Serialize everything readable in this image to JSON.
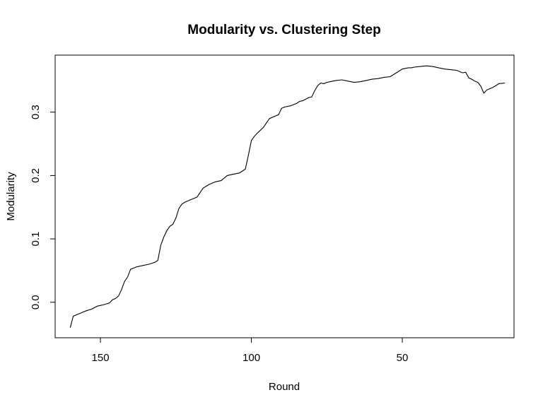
{
  "chart_data": {
    "type": "line",
    "title": "Modularity vs. Clustering Step",
    "xlabel": "Round",
    "ylabel": "Modularity",
    "xlim": [
      165,
      13
    ],
    "ylim": [
      -0.056,
      0.39
    ],
    "x_reversed": true,
    "grid": false,
    "legend": "none",
    "x_ticks": [
      {
        "value": 150,
        "label": "150"
      },
      {
        "value": 100,
        "label": "100"
      },
      {
        "value": 50,
        "label": "50"
      }
    ],
    "y_ticks": [
      {
        "value": 0.0,
        "label": "0.0"
      },
      {
        "value": 0.1,
        "label": "0.1"
      },
      {
        "value": 0.2,
        "label": "0.2"
      },
      {
        "value": 0.3,
        "label": "0.3"
      }
    ],
    "series": [
      {
        "x": [
          160,
          159,
          157,
          155,
          153,
          151,
          149,
          147,
          146,
          145,
          144,
          143,
          142,
          141,
          140,
          138,
          136,
          134,
          132,
          131,
          130,
          129,
          128,
          127,
          126,
          125,
          124,
          123,
          122,
          121,
          120,
          118,
          116,
          114,
          113,
          112,
          110,
          108,
          106,
          104,
          102,
          101,
          100,
          99,
          98,
          96,
          94,
          92,
          91,
          90,
          89,
          87,
          85,
          84,
          83,
          81,
          80,
          79,
          78,
          77,
          76,
          75,
          74,
          72,
          70,
          68,
          66,
          64,
          62,
          60,
          58,
          56,
          54,
          52,
          50,
          48,
          47,
          46,
          44,
          42,
          40,
          38,
          36,
          34,
          32,
          31,
          30,
          29,
          28,
          27,
          26,
          25,
          24,
          23,
          22,
          21,
          20,
          18,
          16
        ],
        "y": [
          -0.04,
          -0.022,
          -0.018,
          -0.014,
          -0.011,
          -0.006,
          -0.004,
          -0.001,
          0.004,
          0.006,
          0.01,
          0.02,
          0.033,
          0.04,
          0.052,
          0.056,
          0.058,
          0.06,
          0.063,
          0.066,
          0.09,
          0.103,
          0.113,
          0.12,
          0.123,
          0.133,
          0.148,
          0.155,
          0.158,
          0.16,
          0.162,
          0.166,
          0.18,
          0.186,
          0.188,
          0.19,
          0.192,
          0.2,
          0.202,
          0.204,
          0.21,
          0.232,
          0.255,
          0.262,
          0.267,
          0.276,
          0.29,
          0.294,
          0.296,
          0.306,
          0.308,
          0.31,
          0.314,
          0.317,
          0.318,
          0.323,
          0.324,
          0.334,
          0.342,
          0.346,
          0.345,
          0.347,
          0.348,
          0.35,
          0.351,
          0.349,
          0.347,
          0.348,
          0.35,
          0.352,
          0.353,
          0.355,
          0.356,
          0.362,
          0.368,
          0.37,
          0.37,
          0.371,
          0.372,
          0.373,
          0.372,
          0.37,
          0.368,
          0.367,
          0.366,
          0.364,
          0.362,
          0.363,
          0.354,
          0.352,
          0.349,
          0.347,
          0.341,
          0.33,
          0.335,
          0.337,
          0.339,
          0.345,
          0.346
        ]
      }
    ]
  }
}
